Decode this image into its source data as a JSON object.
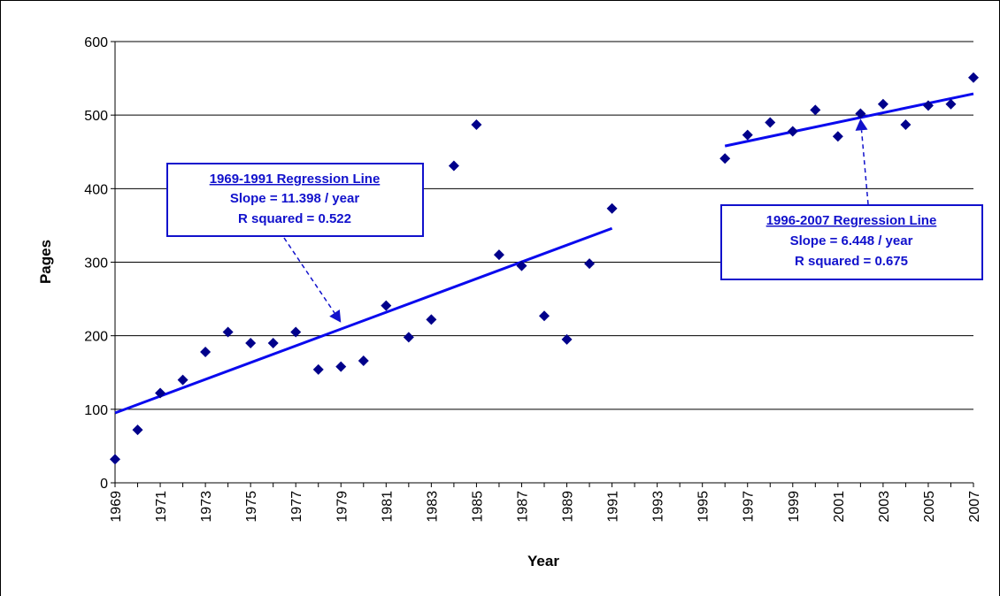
{
  "chart_data": {
    "type": "scatter",
    "title": "",
    "xlabel": "Year",
    "ylabel": "Pages",
    "xlim": [
      1969,
      2007
    ],
    "ylim": [
      0,
      600
    ],
    "yticks": [
      0,
      100,
      200,
      300,
      400,
      500,
      600
    ],
    "xticks": [
      "1969",
      "1971",
      "1973",
      "1975",
      "1977",
      "1979",
      "1981",
      "1983",
      "1985",
      "1987",
      "1989",
      "1991",
      "1993",
      "1995",
      "1997",
      "1999",
      "2001",
      "2003",
      "2005",
      "2007"
    ],
    "grid": "horizontal",
    "legend": "none",
    "colors": {
      "points": "#00008b",
      "regression": "#0a0aee",
      "annotation": "#1111cc"
    },
    "series": [
      {
        "x": [
          1969,
          1970,
          1971,
          1972,
          1973,
          1974,
          1975,
          1976,
          1977,
          1978,
          1979,
          1980,
          1981,
          1982,
          1983,
          1984,
          1985,
          1986,
          1987,
          1988,
          1989,
          1990,
          1991,
          1996,
          1997,
          1998,
          1999,
          2000,
          2001,
          2002,
          2003,
          2004,
          2005,
          2006,
          2007
        ],
        "y": [
          32,
          72,
          122,
          140,
          178,
          205,
          190,
          190,
          205,
          154,
          158,
          166,
          241,
          198,
          222,
          431,
          487,
          310,
          295,
          227,
          195,
          298,
          373,
          441,
          473,
          490,
          478,
          507,
          471,
          502,
          515,
          487,
          513,
          515,
          551
        ]
      }
    ],
    "regression_lines": [
      {
        "x": [
          1969,
          1991
        ],
        "y": [
          95,
          346
        ]
      },
      {
        "x": [
          1996,
          2007
        ],
        "y": [
          458,
          529
        ]
      }
    ],
    "annotations": [
      {
        "title": "1969-1991 Regression Line",
        "lines": [
          "Slope = 11.398 / year",
          "R squared = 0.522"
        ],
        "target": {
          "x": 1979,
          "y": 218
        }
      },
      {
        "title": "1996-2007 Regression Line",
        "lines": [
          "Slope = 6.448 / year",
          "R squared = 0.675"
        ],
        "target": {
          "x": 2002,
          "y": 495
        }
      }
    ]
  }
}
